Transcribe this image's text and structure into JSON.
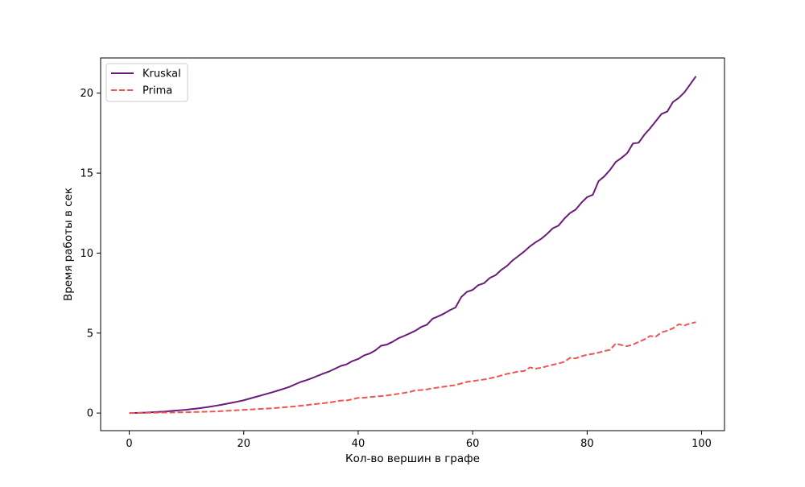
{
  "colors": {
    "background": "#ffffff",
    "frame": "#000000"
  },
  "chart_data": {
    "type": "line",
    "title": "",
    "xlabel": "Кол-во вершин в графе",
    "ylabel": "Время работы в сек",
    "xlim": [
      -5,
      104
    ],
    "ylim": [
      -1.1,
      22.2
    ],
    "xticks": [
      0,
      20,
      40,
      60,
      80,
      100
    ],
    "yticks": [
      0,
      5,
      10,
      15,
      20
    ],
    "xtick_labels": [
      "0",
      "20",
      "40",
      "60",
      "80",
      "100"
    ],
    "ytick_labels": [
      "0",
      "5",
      "10",
      "15",
      "20"
    ],
    "grid": false,
    "legend_position": "upper-left",
    "x": [
      0,
      1,
      2,
      3,
      4,
      5,
      6,
      7,
      8,
      9,
      10,
      11,
      12,
      13,
      14,
      15,
      16,
      17,
      18,
      19,
      20,
      21,
      22,
      23,
      24,
      25,
      26,
      27,
      28,
      29,
      30,
      31,
      32,
      33,
      34,
      35,
      36,
      37,
      38,
      39,
      40,
      41,
      42,
      43,
      44,
      45,
      46,
      47,
      48,
      49,
      50,
      51,
      52,
      53,
      54,
      55,
      56,
      57,
      58,
      59,
      60,
      61,
      62,
      63,
      64,
      65,
      66,
      67,
      68,
      69,
      70,
      71,
      72,
      73,
      74,
      75,
      76,
      77,
      78,
      79,
      80,
      81,
      82,
      83,
      84,
      85,
      86,
      87,
      88,
      89,
      90,
      91,
      92,
      93,
      94,
      95,
      96,
      97,
      98,
      99
    ],
    "series": [
      {
        "name": "Kruskal",
        "color": "#6a1b7a",
        "style": "solid",
        "values": [
          0,
          0.01,
          0.02,
          0.03,
          0.05,
          0.07,
          0.09,
          0.12,
          0.15,
          0.18,
          0.21,
          0.25,
          0.29,
          0.34,
          0.39,
          0.45,
          0.51,
          0.58,
          0.65,
          0.72,
          0.8,
          0.9,
          1.0,
          1.1,
          1.2,
          1.3,
          1.41,
          1.52,
          1.64,
          1.8,
          1.95,
          2.06,
          2.19,
          2.34,
          2.48,
          2.61,
          2.78,
          2.95,
          3.05,
          3.25,
          3.38,
          3.6,
          3.72,
          3.92,
          4.21,
          4.28,
          4.45,
          4.67,
          4.82,
          4.98,
          5.15,
          5.38,
          5.52,
          5.9,
          6.05,
          6.22,
          6.43,
          6.6,
          7.25,
          7.58,
          7.7,
          8.0,
          8.12,
          8.45,
          8.62,
          8.95,
          9.2,
          9.55,
          9.82,
          10.1,
          10.42,
          10.68,
          10.9,
          11.2,
          11.55,
          11.72,
          12.15,
          12.5,
          12.72,
          13.15,
          13.5,
          13.65,
          14.5,
          14.8,
          15.2,
          15.7,
          15.95,
          16.25,
          16.85,
          16.9,
          17.4,
          17.8,
          18.25,
          18.7,
          18.85,
          19.45,
          19.7,
          20.05,
          20.55,
          21.05
        ]
      },
      {
        "name": "Prima",
        "color": "#ee5555",
        "style": "dashed",
        "values": [
          0,
          0.005,
          0.01,
          0.015,
          0.02,
          0.025,
          0.03,
          0.035,
          0.04,
          0.045,
          0.05,
          0.06,
          0.07,
          0.08,
          0.09,
          0.1,
          0.12,
          0.14,
          0.16,
          0.18,
          0.2,
          0.22,
          0.24,
          0.26,
          0.28,
          0.3,
          0.33,
          0.36,
          0.39,
          0.42,
          0.46,
          0.5,
          0.54,
          0.58,
          0.62,
          0.66,
          0.72,
          0.78,
          0.79,
          0.86,
          0.95,
          0.96,
          1.0,
          1.03,
          1.06,
          1.1,
          1.15,
          1.2,
          1.26,
          1.32,
          1.42,
          1.44,
          1.48,
          1.55,
          1.6,
          1.65,
          1.7,
          1.75,
          1.85,
          1.95,
          2.0,
          2.05,
          2.1,
          2.17,
          2.25,
          2.35,
          2.45,
          2.52,
          2.6,
          2.63,
          2.85,
          2.78,
          2.83,
          2.93,
          3.02,
          3.1,
          3.2,
          3.45,
          3.42,
          3.55,
          3.65,
          3.7,
          3.78,
          3.88,
          3.95,
          4.35,
          4.25,
          4.18,
          4.28,
          4.45,
          4.6,
          4.82,
          4.78,
          5.05,
          5.15,
          5.3,
          5.55,
          5.48,
          5.6,
          5.68
        ]
      }
    ]
  }
}
